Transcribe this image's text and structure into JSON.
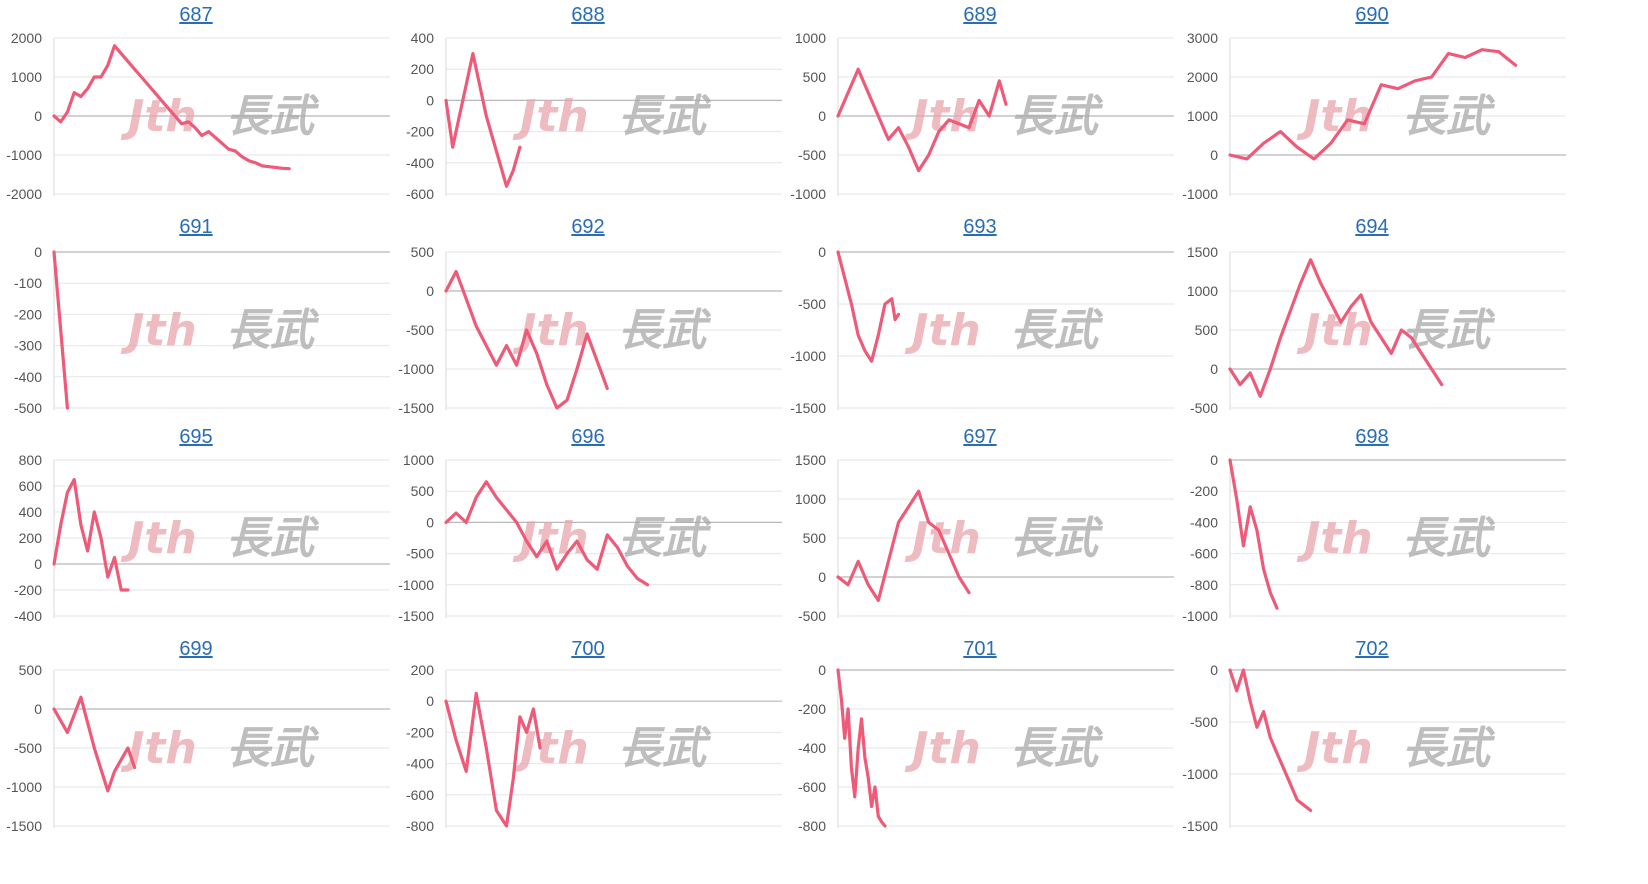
{
  "colors": {
    "series": "#ee5a78",
    "title_link": "#2a6db5",
    "tick_text": "#555555",
    "gridline": "#e6e6e6",
    "zeroline": "#b8b8b8"
  },
  "watermark": {
    "left": "Jth",
    "right": "長武"
  },
  "chart_data": [
    {
      "type": "line",
      "title": "687",
      "ylim": [
        -2000,
        2000
      ],
      "yticks": [
        2000,
        1000,
        0,
        -1000,
        -2000
      ],
      "xlim": [
        0,
        1
      ],
      "x": [
        0,
        0.02,
        0.04,
        0.06,
        0.08,
        0.1,
        0.12,
        0.14,
        0.16,
        0.18,
        0.2,
        0.22,
        0.24,
        0.26,
        0.28,
        0.3,
        0.32,
        0.34,
        0.36,
        0.38,
        0.4,
        0.42,
        0.44,
        0.46,
        0.48,
        0.5,
        0.52,
        0.54,
        0.56,
        0.58,
        0.6,
        0.62,
        0.64,
        0.66,
        0.68,
        0.7
      ],
      "y": [
        0,
        -150,
        100,
        600,
        500,
        700,
        1000,
        1000,
        1300,
        1800,
        1600,
        1400,
        1200,
        1000,
        800,
        600,
        400,
        200,
        0,
        -200,
        -150,
        -300,
        -500,
        -400,
        -550,
        -700,
        -850,
        -900,
        -1050,
        -1150,
        -1200,
        -1280,
        -1300,
        -1320,
        -1340,
        -1350
      ]
    },
    {
      "type": "line",
      "title": "688",
      "ylim": [
        -600,
        400
      ],
      "yticks": [
        400,
        200,
        0,
        -200,
        -400,
        -600
      ],
      "xlim": [
        0,
        1
      ],
      "x": [
        0,
        0.02,
        0.04,
        0.06,
        0.08,
        0.1,
        0.12,
        0.14,
        0.16,
        0.18,
        0.2,
        0.22
      ],
      "y": [
        0,
        -300,
        -100,
        100,
        300,
        100,
        -100,
        -250,
        -400,
        -550,
        -450,
        -300
      ]
    },
    {
      "type": "line",
      "title": "689",
      "ylim": [
        -1000,
        1000
      ],
      "yticks": [
        1000,
        500,
        0,
        -500,
        -1000
      ],
      "xlim": [
        0,
        1
      ],
      "x": [
        0,
        0.03,
        0.06,
        0.09,
        0.12,
        0.15,
        0.18,
        0.21,
        0.24,
        0.27,
        0.3,
        0.33,
        0.36,
        0.39,
        0.42,
        0.45,
        0.48,
        0.5
      ],
      "y": [
        0,
        300,
        600,
        300,
        0,
        -300,
        -150,
        -400,
        -700,
        -500,
        -200,
        -50,
        -100,
        -150,
        200,
        0,
        450,
        150
      ]
    },
    {
      "type": "line",
      "title": "690",
      "ylim": [
        -1000,
        3000
      ],
      "yticks": [
        3000,
        2000,
        1000,
        0,
        -1000
      ],
      "xlim": [
        0,
        1
      ],
      "x": [
        0,
        0.05,
        0.1,
        0.15,
        0.2,
        0.25,
        0.3,
        0.35,
        0.4,
        0.45,
        0.5,
        0.55,
        0.6,
        0.65,
        0.7,
        0.75,
        0.8,
        0.85
      ],
      "y": [
        0,
        -100,
        300,
        600,
        200,
        -100,
        300,
        900,
        800,
        1800,
        1700,
        1900,
        2000,
        2600,
        2500,
        2700,
        2650,
        2300
      ]
    },
    {
      "type": "line",
      "title": "691",
      "ylim": [
        -500,
        0
      ],
      "yticks": [
        0,
        -100,
        -200,
        -300,
        -400,
        -500
      ],
      "xlim": [
        0,
        1
      ],
      "x": [
        0,
        0.04
      ],
      "y": [
        0,
        -500
      ]
    },
    {
      "type": "line",
      "title": "692",
      "ylim": [
        -1500,
        500
      ],
      "yticks": [
        500,
        0,
        -500,
        -1000,
        -1500
      ],
      "xlim": [
        0,
        1
      ],
      "x": [
        0,
        0.03,
        0.06,
        0.09,
        0.12,
        0.15,
        0.18,
        0.21,
        0.24,
        0.27,
        0.3,
        0.33,
        0.36,
        0.39,
        0.42,
        0.45,
        0.48
      ],
      "y": [
        0,
        250,
        -100,
        -450,
        -700,
        -950,
        -700,
        -950,
        -500,
        -800,
        -1200,
        -1500,
        -1400,
        -1000,
        -550,
        -900,
        -1250
      ]
    },
    {
      "type": "line",
      "title": "693",
      "ylim": [
        -1500,
        0
      ],
      "yticks": [
        0,
        -500,
        -1000,
        -1500
      ],
      "xlim": [
        0,
        1
      ],
      "x": [
        0,
        0.02,
        0.04,
        0.06,
        0.08,
        0.1,
        0.12,
        0.14,
        0.16,
        0.17,
        0.18
      ],
      "y": [
        0,
        -250,
        -500,
        -800,
        -950,
        -1050,
        -800,
        -500,
        -450,
        -650,
        -600
      ]
    },
    {
      "type": "line",
      "title": "694",
      "ylim": [
        -500,
        1500
      ],
      "yticks": [
        1500,
        1000,
        500,
        0,
        -500
      ],
      "xlim": [
        0,
        1
      ],
      "x": [
        0,
        0.03,
        0.06,
        0.09,
        0.12,
        0.15,
        0.18,
        0.21,
        0.24,
        0.27,
        0.3,
        0.33,
        0.36,
        0.39,
        0.42,
        0.45,
        0.48,
        0.51,
        0.54,
        0.57,
        0.6,
        0.63
      ],
      "y": [
        0,
        -200,
        -50,
        -350,
        0,
        400,
        750,
        1100,
        1400,
        1100,
        850,
        600,
        800,
        950,
        600,
        400,
        200,
        500,
        400,
        200,
        0,
        -200
      ]
    },
    {
      "type": "line",
      "title": "695",
      "ylim": [
        -400,
        800
      ],
      "yticks": [
        800,
        600,
        400,
        200,
        0,
        -200,
        -400
      ],
      "xlim": [
        0,
        1
      ],
      "x": [
        0,
        0.02,
        0.04,
        0.06,
        0.08,
        0.1,
        0.12,
        0.14,
        0.16,
        0.18,
        0.2,
        0.22
      ],
      "y": [
        0,
        300,
        550,
        650,
        300,
        100,
        400,
        200,
        -100,
        50,
        -200,
        -200
      ]
    },
    {
      "type": "line",
      "title": "696",
      "ylim": [
        -1500,
        1000
      ],
      "yticks": [
        1000,
        500,
        0,
        -500,
        -1000,
        -1500
      ],
      "xlim": [
        0,
        1
      ],
      "x": [
        0,
        0.03,
        0.06,
        0.09,
        0.12,
        0.15,
        0.18,
        0.21,
        0.24,
        0.27,
        0.3,
        0.33,
        0.36,
        0.39,
        0.42,
        0.45,
        0.48,
        0.51,
        0.54,
        0.57,
        0.6
      ],
      "y": [
        0,
        150,
        0,
        400,
        650,
        400,
        200,
        0,
        -300,
        -550,
        -300,
        -750,
        -500,
        -300,
        -600,
        -750,
        -200,
        -400,
        -700,
        -900,
        -1000
      ]
    },
    {
      "type": "line",
      "title": "697",
      "ylim": [
        -500,
        1500
      ],
      "yticks": [
        1500,
        1000,
        500,
        0,
        -500
      ],
      "xlim": [
        0,
        1
      ],
      "x": [
        0,
        0.03,
        0.06,
        0.09,
        0.12,
        0.15,
        0.18,
        0.21,
        0.24,
        0.27,
        0.3,
        0.33,
        0.36,
        0.39
      ],
      "y": [
        0,
        -100,
        200,
        -100,
        -300,
        200,
        700,
        900,
        1100,
        700,
        600,
        300,
        0,
        -200
      ]
    },
    {
      "type": "line",
      "title": "698",
      "ylim": [
        -1000,
        0
      ],
      "yticks": [
        0,
        -200,
        -400,
        -600,
        -800,
        -1000
      ],
      "xlim": [
        0,
        1
      ],
      "x": [
        0,
        0.02,
        0.04,
        0.06,
        0.08,
        0.1,
        0.12,
        0.14
      ],
      "y": [
        0,
        -250,
        -550,
        -300,
        -450,
        -700,
        -850,
        -950
      ]
    },
    {
      "type": "line",
      "title": "699",
      "ylim": [
        -1500,
        500
      ],
      "yticks": [
        500,
        0,
        -500,
        -1000,
        -1500
      ],
      "xlim": [
        0,
        1
      ],
      "x": [
        0,
        0.04,
        0.08,
        0.12,
        0.16,
        0.18,
        0.2,
        0.22,
        0.24
      ],
      "y": [
        0,
        -300,
        150,
        -500,
        -1050,
        -800,
        -650,
        -500,
        -750
      ]
    },
    {
      "type": "line",
      "title": "700",
      "ylim": [
        -800,
        200
      ],
      "yticks": [
        200,
        0,
        -200,
        -400,
        -600,
        -800
      ],
      "xlim": [
        0,
        1
      ],
      "x": [
        0,
        0.03,
        0.06,
        0.09,
        0.12,
        0.15,
        0.18,
        0.2,
        0.22,
        0.24,
        0.26,
        0.28
      ],
      "y": [
        0,
        -250,
        -450,
        50,
        -300,
        -700,
        -800,
        -500,
        -100,
        -200,
        -50,
        -300
      ]
    },
    {
      "type": "line",
      "title": "701",
      "ylim": [
        -800,
        0
      ],
      "yticks": [
        0,
        -200,
        -400,
        -600,
        -800
      ],
      "xlim": [
        0,
        1
      ],
      "x": [
        0,
        0.01,
        0.02,
        0.03,
        0.04,
        0.05,
        0.06,
        0.07,
        0.08,
        0.09,
        0.1,
        0.11,
        0.12,
        0.13,
        0.14
      ],
      "y": [
        0,
        -150,
        -350,
        -200,
        -500,
        -650,
        -400,
        -250,
        -450,
        -550,
        -700,
        -600,
        -750,
        -780,
        -800
      ]
    },
    {
      "type": "line",
      "title": "702",
      "ylim": [
        -1500,
        0
      ],
      "yticks": [
        0,
        -500,
        -1000,
        -1500
      ],
      "xlim": [
        0,
        1
      ],
      "x": [
        0,
        0.02,
        0.04,
        0.06,
        0.08,
        0.1,
        0.12,
        0.14,
        0.16,
        0.18,
        0.2,
        0.22,
        0.24
      ],
      "y": [
        0,
        -200,
        0,
        -300,
        -550,
        -400,
        -650,
        -800,
        -950,
        -1100,
        -1250,
        -1300,
        -1350
      ]
    }
  ]
}
